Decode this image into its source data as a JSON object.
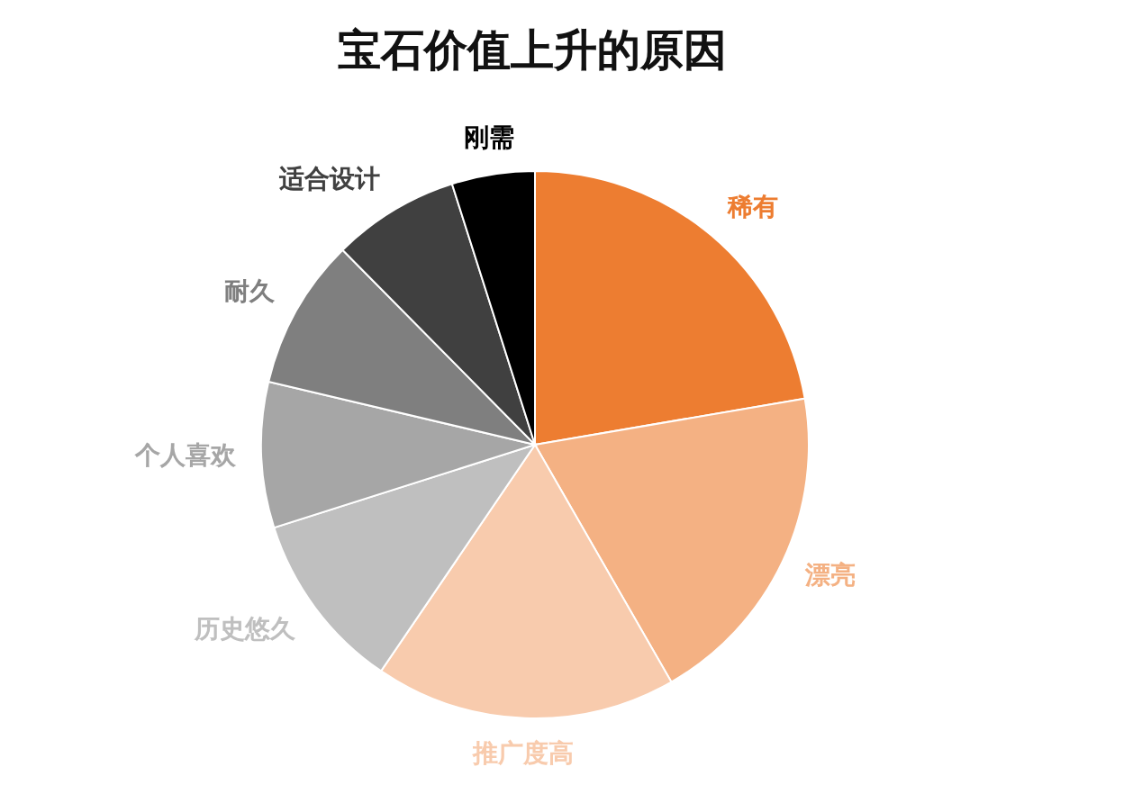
{
  "chart_data": {
    "type": "pie",
    "title": "宝石价值上升的原因",
    "categories": [
      "稀有",
      "漂亮",
      "推广度高",
      "历史悠久",
      "个人喜欢",
      "耐久",
      "适合设计",
      "刚需"
    ],
    "values": [
      22.3,
      19.4,
      17.8,
      10.6,
      8.6,
      8.9,
      7.5,
      4.9
    ],
    "colors": [
      "#ed7d31",
      "#f4b183",
      "#f8cbad",
      "#bfbfbf",
      "#a6a6a6",
      "#7f7f7f",
      "#404040",
      "#000000"
    ],
    "legend": false
  }
}
